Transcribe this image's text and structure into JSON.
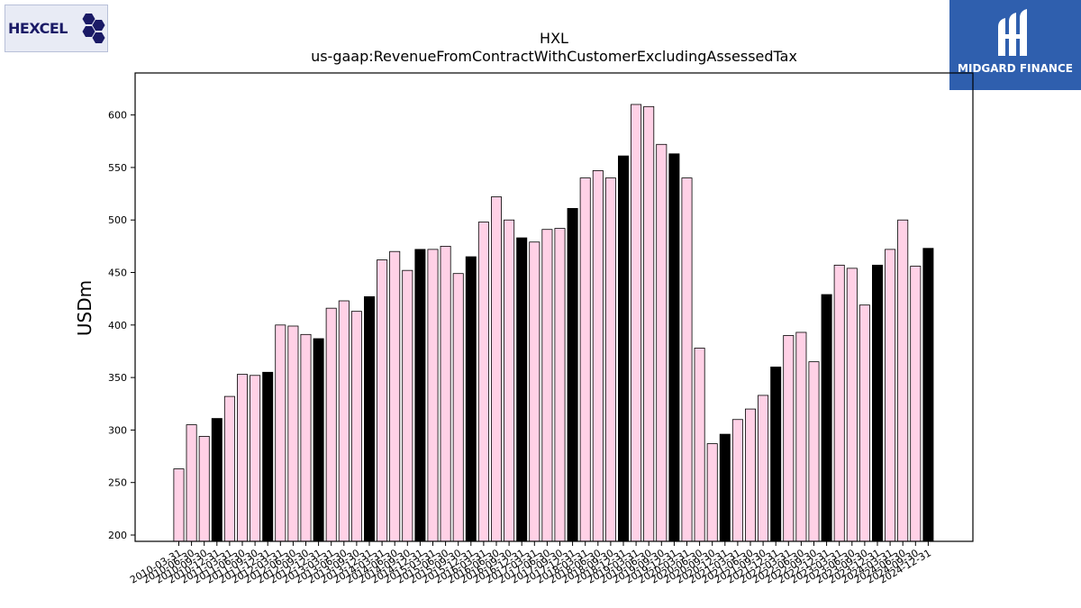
{
  "logos": {
    "left_text": "HEXCEL",
    "right_text": "MIDGARD FINANCE"
  },
  "chart_data": {
    "type": "bar",
    "title": "HXL",
    "subtitle": "us-gaap:RevenueFromContractWithCustomerExcludingAssessedTax",
    "ylabel": "USDm",
    "xlabel": "",
    "ylim": [
      194,
      640
    ],
    "yticks": [
      200,
      250,
      300,
      350,
      400,
      450,
      500,
      550,
      600
    ],
    "grid": false,
    "colors": {
      "quarter": "#ffd1e6",
      "fiscal_year_end": "#000000",
      "edge": "#000000"
    },
    "categories": [
      "2010-03-31",
      "2010-06-30",
      "2010-09-30",
      "2010-12-31",
      "2011-03-31",
      "2011-06-30",
      "2011-09-30",
      "2011-12-31",
      "2012-03-31",
      "2012-06-30",
      "2012-09-30",
      "2012-12-31",
      "2013-03-31",
      "2013-06-30",
      "2013-09-30",
      "2013-12-31",
      "2014-03-31",
      "2014-06-30",
      "2014-09-30",
      "2014-12-31",
      "2015-03-31",
      "2015-06-30",
      "2015-09-30",
      "2015-12-31",
      "2016-03-31",
      "2016-06-30",
      "2016-09-30",
      "2016-12-31",
      "2017-03-31",
      "2017-06-30",
      "2017-09-30",
      "2017-12-31",
      "2018-03-31",
      "2018-06-30",
      "2018-09-30",
      "2018-12-31",
      "2019-03-31",
      "2019-06-30",
      "2019-09-30",
      "2019-12-31",
      "2020-03-31",
      "2020-06-30",
      "2020-09-30",
      "2020-12-31",
      "2021-03-31",
      "2021-06-30",
      "2021-09-30",
      "2021-12-31",
      "2022-03-31",
      "2022-06-30",
      "2022-09-30",
      "2022-12-31",
      "2023-03-31",
      "2023-06-30",
      "2023-09-30",
      "2023-12-31",
      "2024-03-31",
      "2024-06-30",
      "2024-09-30",
      "2024-12-31"
    ],
    "values": [
      263,
      305,
      294,
      311,
      332,
      353,
      352,
      355,
      400,
      399,
      391,
      387,
      416,
      423,
      413,
      427,
      462,
      470,
      452,
      472,
      472,
      475,
      449,
      465,
      498,
      522,
      500,
      483,
      479,
      491,
      492,
      511,
      540,
      547,
      540,
      561,
      610,
      608,
      572,
      563,
      540,
      378,
      287,
      296,
      310,
      320,
      333,
      360,
      390,
      393,
      365,
      429,
      457,
      454,
      419,
      457,
      472,
      500,
      456,
      473
    ]
  }
}
